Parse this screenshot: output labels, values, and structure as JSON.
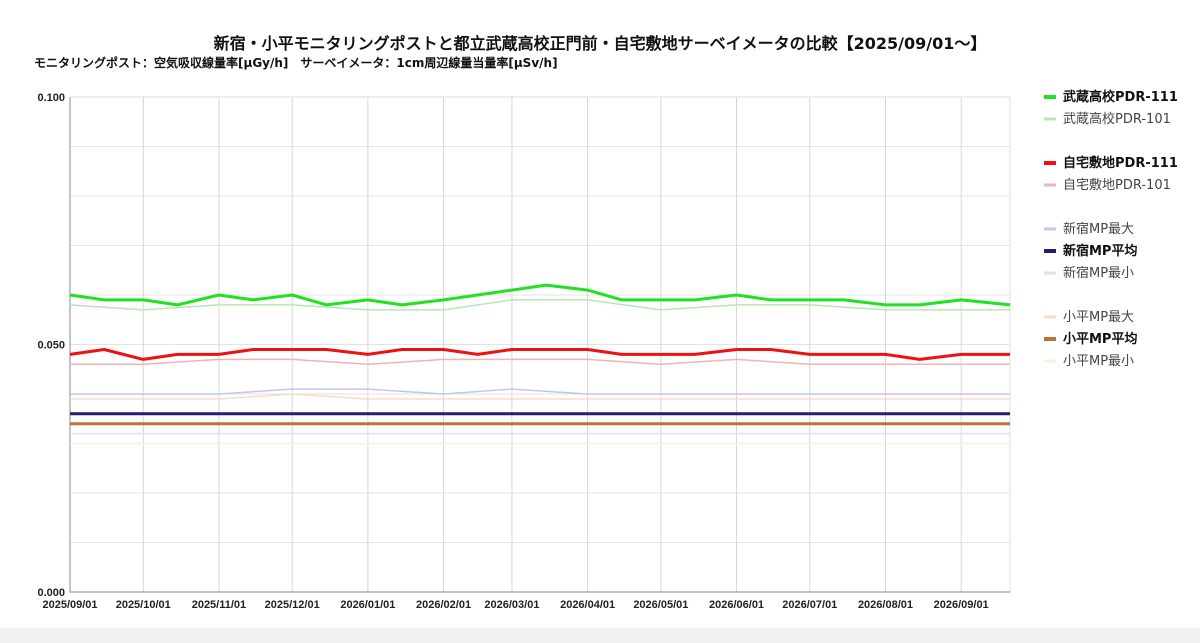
{
  "chart_data": {
    "type": "line",
    "title": "新宿・小平モニタリングポストと都立武蔵高校正門前・自宅敷地サーベイメータの比較【2025/09/01〜】",
    "subtitle": "モニタリングポスト：空気吸収線量率[μGy/h]　サーベイメータ：1cm周辺線量当量率[μSv/h]",
    "xlabel": "",
    "ylabel": "",
    "x_range": [
      "2025-09-01",
      "2026-09-21"
    ],
    "ylim": [
      0.0,
      0.1
    ],
    "y_ticks": [
      "0.000",
      "0.050",
      "0.100"
    ],
    "x_ticks": [
      "2025/09/01",
      "2025/10/01",
      "2025/11/01",
      "2025/12/01",
      "2026/01/01",
      "2026/02/01",
      "2026/03/01",
      "2026/04/01",
      "2026/05/01",
      "2026/06/01",
      "2026/07/01",
      "2026/08/01",
      "2026/09/01"
    ],
    "grid": true,
    "legend_position": "right",
    "series": [
      {
        "name": "武蔵高校PDR-111",
        "color": "#22e022",
        "bold": true,
        "points": [
          [
            "2025-09-01",
            0.06
          ],
          [
            "2025-09-15",
            0.059
          ],
          [
            "2025-10-01",
            0.059
          ],
          [
            "2025-10-15",
            0.058
          ],
          [
            "2025-11-01",
            0.06
          ],
          [
            "2025-11-15",
            0.059
          ],
          [
            "2025-12-01",
            0.06
          ],
          [
            "2025-12-15",
            0.058
          ],
          [
            "2026-01-01",
            0.059
          ],
          [
            "2026-01-15",
            0.058
          ],
          [
            "2026-02-01",
            0.059
          ],
          [
            "2026-02-15",
            0.06
          ],
          [
            "2026-03-01",
            0.061
          ],
          [
            "2026-03-15",
            0.062
          ],
          [
            "2026-04-01",
            0.061
          ],
          [
            "2026-04-15",
            0.059
          ],
          [
            "2026-05-01",
            0.059
          ],
          [
            "2026-05-15",
            0.059
          ],
          [
            "2026-06-01",
            0.06
          ],
          [
            "2026-06-15",
            0.059
          ],
          [
            "2026-07-01",
            0.059
          ],
          [
            "2026-07-15",
            0.059
          ],
          [
            "2026-08-01",
            0.058
          ],
          [
            "2026-08-15",
            0.058
          ],
          [
            "2026-09-01",
            0.059
          ],
          [
            "2026-09-21",
            0.058
          ]
        ]
      },
      {
        "name": "武蔵高校PDR-101",
        "color": "#b9e6b3",
        "bold": false,
        "points": [
          [
            "2025-09-01",
            0.058
          ],
          [
            "2025-10-01",
            0.057
          ],
          [
            "2025-11-01",
            0.058
          ],
          [
            "2025-12-01",
            0.058
          ],
          [
            "2026-01-01",
            0.057
          ],
          [
            "2026-02-01",
            0.057
          ],
          [
            "2026-03-01",
            0.059
          ],
          [
            "2026-04-01",
            0.059
          ],
          [
            "2026-05-01",
            0.057
          ],
          [
            "2026-06-01",
            0.058
          ],
          [
            "2026-07-01",
            0.058
          ],
          [
            "2026-08-01",
            0.057
          ],
          [
            "2026-09-01",
            0.057
          ],
          [
            "2026-09-21",
            0.057
          ]
        ]
      },
      {
        "name": "自宅敷地PDR-111",
        "color": "#ee1111",
        "bold": true,
        "points": [
          [
            "2025-09-01",
            0.048
          ],
          [
            "2025-09-15",
            0.049
          ],
          [
            "2025-10-01",
            0.047
          ],
          [
            "2025-10-15",
            0.048
          ],
          [
            "2025-11-01",
            0.048
          ],
          [
            "2025-11-15",
            0.049
          ],
          [
            "2025-12-01",
            0.049
          ],
          [
            "2025-12-15",
            0.049
          ],
          [
            "2026-01-01",
            0.048
          ],
          [
            "2026-01-15",
            0.049
          ],
          [
            "2026-02-01",
            0.049
          ],
          [
            "2026-02-15",
            0.048
          ],
          [
            "2026-03-01",
            0.049
          ],
          [
            "2026-03-15",
            0.049
          ],
          [
            "2026-04-01",
            0.049
          ],
          [
            "2026-04-15",
            0.048
          ],
          [
            "2026-05-01",
            0.048
          ],
          [
            "2026-05-15",
            0.048
          ],
          [
            "2026-06-01",
            0.049
          ],
          [
            "2026-06-15",
            0.049
          ],
          [
            "2026-07-01",
            0.048
          ],
          [
            "2026-07-15",
            0.048
          ],
          [
            "2026-08-01",
            0.048
          ],
          [
            "2026-08-15",
            0.047
          ],
          [
            "2026-09-01",
            0.048
          ],
          [
            "2026-09-21",
            0.048
          ]
        ]
      },
      {
        "name": "自宅敷地PDR-101",
        "color": "#f0b3b8",
        "bold": false,
        "points": [
          [
            "2025-09-01",
            0.046
          ],
          [
            "2025-10-01",
            0.046
          ],
          [
            "2025-11-01",
            0.047
          ],
          [
            "2025-12-01",
            0.047
          ],
          [
            "2026-01-01",
            0.046
          ],
          [
            "2026-02-01",
            0.047
          ],
          [
            "2026-03-01",
            0.047
          ],
          [
            "2026-04-01",
            0.047
          ],
          [
            "2026-05-01",
            0.046
          ],
          [
            "2026-06-01",
            0.047
          ],
          [
            "2026-07-01",
            0.046
          ],
          [
            "2026-08-01",
            0.046
          ],
          [
            "2026-09-01",
            0.046
          ],
          [
            "2026-09-21",
            0.046
          ]
        ]
      },
      {
        "name": "新宿MP最大",
        "color": "#c8c4e6",
        "bold": false,
        "points": [
          [
            "2025-09-01",
            0.04
          ],
          [
            "2025-10-01",
            0.04
          ],
          [
            "2025-11-01",
            0.04
          ],
          [
            "2025-12-01",
            0.041
          ],
          [
            "2026-01-01",
            0.041
          ],
          [
            "2026-02-01",
            0.04
          ],
          [
            "2026-03-01",
            0.041
          ],
          [
            "2026-04-01",
            0.04
          ],
          [
            "2026-05-01",
            0.04
          ],
          [
            "2026-06-01",
            0.04
          ],
          [
            "2026-07-01",
            0.04
          ],
          [
            "2026-08-01",
            0.04
          ],
          [
            "2026-09-01",
            0.04
          ],
          [
            "2026-09-21",
            0.04
          ]
        ]
      },
      {
        "name": "新宿MP平均",
        "color": "#2b1a6e",
        "bold": true,
        "points": [
          [
            "2025-09-01",
            0.036
          ],
          [
            "2025-10-01",
            0.036
          ],
          [
            "2025-11-01",
            0.036
          ],
          [
            "2025-12-01",
            0.036
          ],
          [
            "2026-01-01",
            0.036
          ],
          [
            "2026-02-01",
            0.036
          ],
          [
            "2026-03-01",
            0.036
          ],
          [
            "2026-04-01",
            0.036
          ],
          [
            "2026-05-01",
            0.036
          ],
          [
            "2026-06-01",
            0.036
          ],
          [
            "2026-07-01",
            0.036
          ],
          [
            "2026-08-01",
            0.036
          ],
          [
            "2026-09-01",
            0.036
          ],
          [
            "2026-09-21",
            0.036
          ]
        ]
      },
      {
        "name": "新宿MP最小",
        "color": "#e2e0ee",
        "bold": false,
        "points": [
          [
            "2025-09-01",
            0.032
          ],
          [
            "2025-10-01",
            0.032
          ],
          [
            "2025-11-01",
            0.032
          ],
          [
            "2025-12-01",
            0.032
          ],
          [
            "2026-01-01",
            0.032
          ],
          [
            "2026-02-01",
            0.032
          ],
          [
            "2026-03-01",
            0.032
          ],
          [
            "2026-04-01",
            0.032
          ],
          [
            "2026-05-01",
            0.032
          ],
          [
            "2026-06-01",
            0.032
          ],
          [
            "2026-07-01",
            0.032
          ],
          [
            "2026-08-01",
            0.032
          ],
          [
            "2026-09-01",
            0.032
          ],
          [
            "2026-09-21",
            0.032
          ]
        ]
      },
      {
        "name": "小平MP最大",
        "color": "#f8dcc4",
        "bold": false,
        "points": [
          [
            "2025-09-01",
            0.039
          ],
          [
            "2025-10-01",
            0.039
          ],
          [
            "2025-11-01",
            0.039
          ],
          [
            "2025-12-01",
            0.04
          ],
          [
            "2026-01-01",
            0.039
          ],
          [
            "2026-02-01",
            0.039
          ],
          [
            "2026-03-01",
            0.039
          ],
          [
            "2026-04-01",
            0.039
          ],
          [
            "2026-05-01",
            0.039
          ],
          [
            "2026-06-01",
            0.039
          ],
          [
            "2026-07-01",
            0.039
          ],
          [
            "2026-08-01",
            0.039
          ],
          [
            "2026-09-01",
            0.039
          ],
          [
            "2026-09-21",
            0.039
          ]
        ]
      },
      {
        "name": "小平MP平均",
        "color": "#b8743a",
        "bold": true,
        "points": [
          [
            "2025-09-01",
            0.034
          ],
          [
            "2025-10-01",
            0.034
          ],
          [
            "2025-11-01",
            0.034
          ],
          [
            "2025-12-01",
            0.034
          ],
          [
            "2026-01-01",
            0.034
          ],
          [
            "2026-02-01",
            0.034
          ],
          [
            "2026-03-01",
            0.034
          ],
          [
            "2026-04-01",
            0.034
          ],
          [
            "2026-05-01",
            0.034
          ],
          [
            "2026-06-01",
            0.034
          ],
          [
            "2026-07-01",
            0.034
          ],
          [
            "2026-08-01",
            0.034
          ],
          [
            "2026-09-01",
            0.034
          ],
          [
            "2026-09-21",
            0.034
          ]
        ]
      },
      {
        "name": "小平MP最小",
        "color": "#fbeee2",
        "bold": false,
        "points": [
          [
            "2025-09-01",
            0.03
          ],
          [
            "2025-10-01",
            0.03
          ],
          [
            "2025-11-01",
            0.03
          ],
          [
            "2025-12-01",
            0.03
          ],
          [
            "2026-01-01",
            0.03
          ],
          [
            "2026-02-01",
            0.03
          ],
          [
            "2026-03-01",
            0.03
          ],
          [
            "2026-04-01",
            0.03
          ],
          [
            "2026-05-01",
            0.03
          ],
          [
            "2026-06-01",
            0.03
          ],
          [
            "2026-07-01",
            0.03
          ],
          [
            "2026-08-01",
            0.03
          ],
          [
            "2026-09-01",
            0.03
          ],
          [
            "2026-09-21",
            0.03
          ]
        ]
      }
    ]
  }
}
